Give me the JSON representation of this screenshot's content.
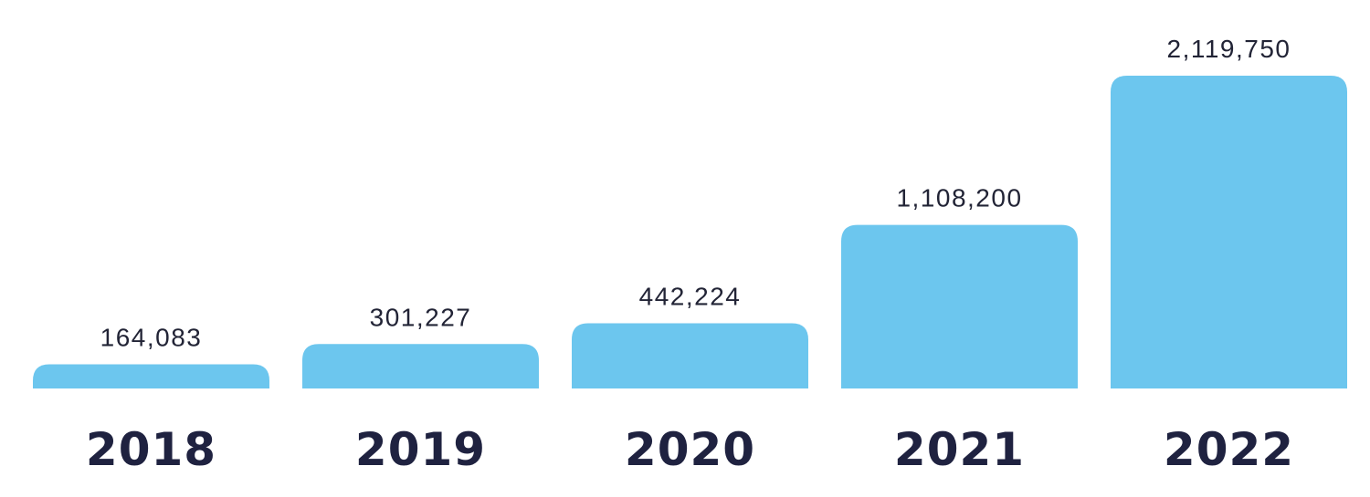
{
  "chart_data": {
    "type": "bar",
    "categories": [
      "2018",
      "2019",
      "2020",
      "2021",
      "2022"
    ],
    "values": [
      164083,
      301227,
      442224,
      1108200,
      2119750
    ],
    "value_labels": [
      "164,083",
      "301,227",
      "442,224",
      "1,108,200",
      "2,119,750"
    ],
    "title": "",
    "xlabel": "",
    "ylabel": "",
    "grid": false,
    "legend": "none",
    "y_axis_visible": false,
    "colors": {
      "bar": "#6cc6ee",
      "value_text": "#222436",
      "category_text": "#1f2240",
      "background": "#ffffff"
    }
  }
}
